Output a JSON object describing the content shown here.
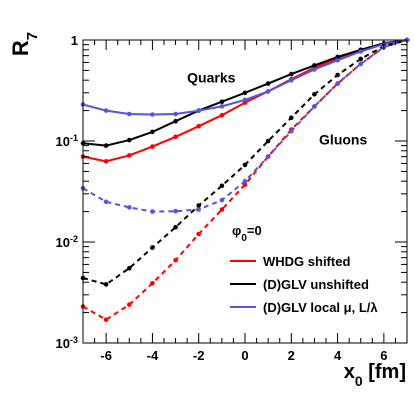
{
  "chart_data": {
    "type": "line",
    "title": "",
    "xlabel": "x_0 [fm]",
    "ylabel": "R_7",
    "xlim": [
      -7,
      7
    ],
    "ylim": [
      0.001,
      1
    ],
    "yscale": "log",
    "x_ticks": [
      -6,
      -4,
      -2,
      0,
      2,
      4,
      6
    ],
    "x_tick_labels": [
      "-6",
      "-4",
      "-2",
      "0",
      "2",
      "4",
      "6"
    ],
    "y_ticks": [
      0.001,
      0.01,
      0.1,
      1
    ],
    "y_tick_label_parts": [
      {
        "base": "10",
        "exp": "-3"
      },
      {
        "base": "10",
        "exp": "-2"
      },
      {
        "base": "10",
        "exp": "-1"
      },
      {
        "base": "1",
        "exp": ""
      }
    ],
    "annotations": [
      {
        "text": "Quarks",
        "x": -2.5,
        "y": 0.38
      },
      {
        "text": "Gluons",
        "x": 3.2,
        "y": 0.092
      }
    ],
    "legend": {
      "placement": "bottom-right",
      "header": {
        "base": "φ",
        "sub": "0",
        "rest": "=0"
      },
      "entries": [
        {
          "label": "WHDG shifted",
          "color": "#ff0000"
        },
        {
          "label": "(D)GLV unshifted",
          "color": "#000000"
        },
        {
          "label": "(D)GLV local μ, L/λ",
          "color": "#5555dd"
        }
      ]
    },
    "x": [
      -7,
      -6,
      -5,
      -4,
      -3,
      -2,
      -1,
      0,
      1,
      2,
      3,
      4,
      5,
      6,
      7
    ],
    "series": [
      {
        "label_ref": 0,
        "group": "Quarks",
        "style": "solid",
        "color": "#ff0000",
        "values": [
          0.07,
          0.063,
          0.072,
          0.088,
          0.11,
          0.14,
          0.18,
          0.24,
          0.31,
          0.41,
          0.53,
          0.66,
          0.8,
          0.92,
          1.0
        ]
      },
      {
        "label_ref": 1,
        "group": "Quarks",
        "style": "solid",
        "color": "#000000",
        "values": [
          0.095,
          0.09,
          0.102,
          0.123,
          0.157,
          0.2,
          0.245,
          0.3,
          0.37,
          0.46,
          0.56,
          0.68,
          0.8,
          0.93,
          1.0
        ]
      },
      {
        "label_ref": 2,
        "group": "Quarks",
        "style": "solid",
        "color": "#5555dd",
        "values": [
          0.23,
          0.2,
          0.185,
          0.183,
          0.185,
          0.2,
          0.22,
          0.255,
          0.31,
          0.4,
          0.51,
          0.63,
          0.77,
          0.91,
          1.0
        ]
      },
      {
        "label_ref": 0,
        "group": "Gluons",
        "style": "dashed",
        "color": "#ff0000",
        "values": [
          0.0023,
          0.0017,
          0.0024,
          0.0039,
          0.0066,
          0.012,
          0.021,
          0.037,
          0.07,
          0.13,
          0.22,
          0.37,
          0.58,
          0.85,
          1.0
        ]
      },
      {
        "label_ref": 1,
        "group": "Gluons",
        "style": "dashed",
        "color": "#000000",
        "values": [
          0.0044,
          0.0038,
          0.0055,
          0.0088,
          0.014,
          0.023,
          0.036,
          0.058,
          0.1,
          0.17,
          0.29,
          0.45,
          0.65,
          0.87,
          1.0
        ]
      },
      {
        "label_ref": 2,
        "group": "Gluons",
        "style": "dashed",
        "color": "#5555dd",
        "values": [
          0.034,
          0.025,
          0.022,
          0.02,
          0.0202,
          0.021,
          0.026,
          0.04,
          0.07,
          0.125,
          0.22,
          0.37,
          0.58,
          0.85,
          1.0
        ]
      }
    ]
  }
}
